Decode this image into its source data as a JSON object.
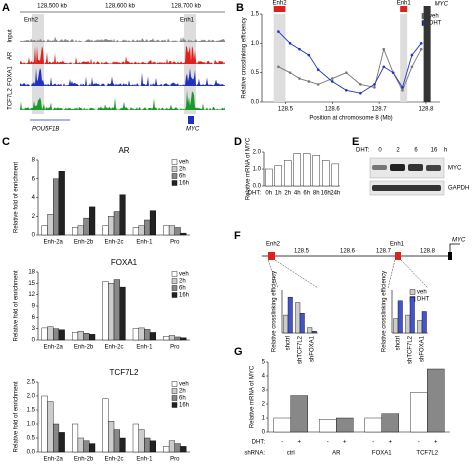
{
  "panel_labels": [
    "A",
    "B",
    "C",
    "D",
    "E",
    "F",
    "G"
  ],
  "panel_a": {
    "coords": [
      "128,500 kb",
      "128,600 kb",
      "128,700 kb"
    ],
    "enhancers": [
      "Enh2",
      "Enh1"
    ],
    "tracks": [
      "Input",
      "AR",
      "FOXA1",
      "TCF7L2"
    ],
    "genes": [
      "POU5F1B",
      "MYC"
    ]
  },
  "panel_e": {
    "header": "DHT:",
    "times": [
      "0",
      "2",
      "6",
      "16"
    ],
    "unit": "h",
    "bands": [
      "MYC",
      "GAPDH"
    ]
  },
  "panel_f": {
    "enhancers": [
      "Enh2",
      "Enh1"
    ],
    "coords": [
      "128.5",
      "128.6",
      "128.7",
      "128.8"
    ],
    "gene": "MYC"
  },
  "chart_data": [
    {
      "type": "line",
      "ylabel": "Relative crosslinking efficiency",
      "xlabel": "Position at chromosome 8 (Mb)",
      "x": [
        128.485,
        128.51,
        128.53,
        128.55,
        128.57,
        128.6,
        128.63,
        128.66,
        128.69,
        128.71,
        128.73,
        128.75,
        128.77,
        128.79
      ],
      "series": [
        {
          "name": "veh",
          "color": "#777777",
          "values": [
            0.6,
            0.5,
            0.4,
            0.35,
            0.3,
            0.4,
            0.5,
            0.3,
            0.25,
            0.9,
            0.5,
            0.2,
            0.6,
            0.9
          ]
        },
        {
          "name": "DHT",
          "color": "#2233cc",
          "values": [
            1.2,
            1.0,
            0.9,
            0.8,
            0.55,
            0.35,
            0.2,
            0.15,
            0.3,
            0.6,
            0.5,
            0.25,
            0.8,
            1.0
          ]
        }
      ],
      "xlim": [
        128.45,
        128.83
      ],
      "xticks": [
        128.5,
        128.6,
        128.7,
        128.8
      ],
      "ylim": [
        0,
        1.5
      ],
      "yticks": [
        {
          "value": 0,
          "label": "0.0"
        },
        {
          "value": 0.5,
          "label": "0.5"
        },
        {
          "value": 1,
          "label": "1.0"
        },
        {
          "value": 1.5,
          "label": "1.5"
        }
      ],
      "regions": [
        {
          "label": "Enh2",
          "range": [
            128.475,
            128.5
          ]
        },
        {
          "label": "Enh1",
          "range": [
            128.745,
            128.76
          ]
        }
      ],
      "gene": {
        "label": "MYC",
        "range": [
          128.795,
          128.81
        ]
      },
      "legend": "upper right"
    },
    {
      "type": "bar",
      "title": "AR",
      "ylabel": "Relative fold of enrichment",
      "categories": [
        "Enh-2a",
        "Enh-2b",
        "Enh-2c",
        "Enh-1",
        "Pro"
      ],
      "series": [
        {
          "name": "veh",
          "color": "#ffffff",
          "values": [
            1.0,
            0.8,
            1.0,
            0.8,
            1.0
          ]
        },
        {
          "name": "2h",
          "color": "#cccccc",
          "values": [
            2.2,
            1.0,
            2.0,
            1.0,
            1.0
          ]
        },
        {
          "name": "6h",
          "color": "#888888",
          "values": [
            6.0,
            1.8,
            2.5,
            1.6,
            0.8
          ]
        },
        {
          "name": "16h",
          "color": "#222222",
          "values": [
            6.8,
            3.0,
            4.3,
            2.6,
            0.2
          ]
        }
      ],
      "ylim": [
        0,
        8
      ],
      "yticks": [
        0,
        2,
        4,
        6,
        8
      ],
      "legend": "upper right"
    },
    {
      "type": "bar",
      "title": "FOXA1",
      "ylabel": "Relative fold of enrichment",
      "categories": [
        "Enh-2a",
        "Enh-2b",
        "Enh-2c",
        "Enh-1",
        "Pro"
      ],
      "series": [
        {
          "name": "veh",
          "color": "#ffffff",
          "values": [
            3.2,
            2.0,
            15.5,
            3.0,
            1.0
          ]
        },
        {
          "name": "2h",
          "color": "#cccccc",
          "values": [
            3.5,
            2.3,
            15.0,
            3.2,
            1.2
          ]
        },
        {
          "name": "6h",
          "color": "#888888",
          "values": [
            3.0,
            1.8,
            16.0,
            2.8,
            0.8
          ]
        },
        {
          "name": "16h",
          "color": "#222222",
          "values": [
            2.7,
            1.5,
            14.0,
            2.0,
            0.6
          ]
        }
      ],
      "ylim": [
        0,
        18
      ],
      "yticks": [
        0,
        3,
        6,
        9,
        12,
        15,
        18
      ],
      "legend": "upper right"
    },
    {
      "type": "bar",
      "title": "TCF7L2",
      "ylabel": "Relative fold of enrichment",
      "categories": [
        "Enh-2a",
        "Enh-2b",
        "Enh-2c",
        "Enh-1",
        "Pro"
      ],
      "series": [
        {
          "name": "veh",
          "color": "#ffffff",
          "values": [
            2.0,
            1.0,
            1.9,
            1.0,
            0.2
          ]
        },
        {
          "name": "2h",
          "color": "#cccccc",
          "values": [
            1.8,
            0.5,
            1.1,
            0.8,
            0.4
          ]
        },
        {
          "name": "6h",
          "color": "#888888",
          "values": [
            1.0,
            0.4,
            0.8,
            0.5,
            0.3
          ]
        },
        {
          "name": "16h",
          "color": "#222222",
          "values": [
            0.7,
            0.3,
            0.5,
            0.4,
            0.2
          ]
        }
      ],
      "ylim": [
        0,
        2.5
      ],
      "yticks": [
        {
          "value": 0,
          "label": "0.0"
        },
        {
          "value": 0.5,
          "label": "0.5"
        },
        {
          "value": 1,
          "label": "1.0"
        },
        {
          "value": 1.5,
          "label": "1.5"
        },
        {
          "value": 2,
          "label": "2.0"
        },
        {
          "value": 2.5,
          "label": "2.5"
        }
      ],
      "legend": "upper right"
    },
    {
      "type": "bar",
      "ylabel": "Relative mRNA of MYC",
      "x_prefix": "DHT:",
      "categories": [
        "0h",
        "1h",
        "2h",
        "4h",
        "6h",
        "8h",
        "16h",
        "24h"
      ],
      "series": [
        {
          "color": "#ffffff",
          "values": [
            1.0,
            1.2,
            1.5,
            1.9,
            1.9,
            1.8,
            1.5,
            1.3
          ]
        }
      ],
      "ylim": [
        0,
        2
      ],
      "yticks": [
        {
          "value": 0,
          "label": "0.0"
        },
        {
          "value": 1,
          "label": "1.0"
        },
        {
          "value": 2,
          "label": "2.0"
        }
      ]
    },
    {
      "type": "bar",
      "ylabel": "Relative crosslinking efficiency",
      "categories": [
        "shctrl",
        "shTCF7L2",
        "shFOXA1"
      ],
      "series": [
        {
          "color": "#cccccc",
          "values": [
            0.5,
            0.85,
            0.15
          ]
        },
        {
          "color": "#4455cc",
          "values": [
            1.0,
            0.55,
            0.05
          ]
        }
      ],
      "ylim": [
        0,
        1.2
      ]
    },
    {
      "type": "bar",
      "ylabel": "Relative crosslinking efficiency",
      "categories": [
        "shctrl",
        "shTCF7L2",
        "shFOXA1"
      ],
      "series": [
        {
          "name": "veh",
          "color": "#cccccc",
          "values": [
            0.4,
            0.5,
            0.35
          ]
        },
        {
          "name": "DHT",
          "color": "#4455cc",
          "values": [
            0.9,
            1.0,
            0.6
          ]
        }
      ],
      "ylim": [
        0,
        1.2
      ],
      "legend": "upper right"
    },
    {
      "type": "bar",
      "ylabel": "Relative mRNA of MYC",
      "row_labels": [
        "DHT:",
        "shRNA:"
      ],
      "signs": [
        "-",
        "+"
      ],
      "categories": [
        "ctrl",
        "AR",
        "FOXA1",
        "TCF7L2"
      ],
      "series": [
        {
          "color": "#ffffff",
          "values": [
            1.0,
            0.9,
            1.0,
            2.8
          ]
        },
        {
          "color": "#888888",
          "values": [
            2.6,
            1.0,
            1.3,
            4.5
          ]
        }
      ],
      "ylim": [
        0,
        5
      ],
      "yticks": [
        0,
        1,
        2,
        3,
        4,
        5
      ]
    }
  ]
}
